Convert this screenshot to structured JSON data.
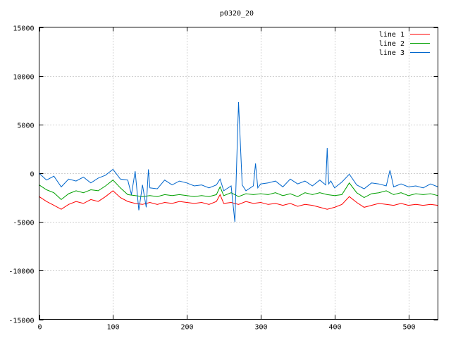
{
  "chart_data": {
    "type": "line",
    "title": "p0320_20",
    "xlabel": "",
    "ylabel": "",
    "xlim": [
      0,
      540
    ],
    "ylim": [
      -15000,
      15000
    ],
    "xticks": [
      0,
      100,
      200,
      300,
      400,
      500
    ],
    "yticks": [
      -15000,
      -10000,
      -5000,
      0,
      5000,
      10000,
      15000
    ],
    "xtick_labels": [
      "0",
      "100",
      "200",
      "300",
      "400",
      "500"
    ],
    "ytick_labels": [
      "-15000",
      "-10000",
      "-5000",
      "0",
      "5000",
      "10000",
      "15000"
    ],
    "grid": true,
    "legend_position": "top-right",
    "series": [
      {
        "name": "line 1",
        "color": "#ff0000",
        "x": [
          0,
          10,
          20,
          30,
          40,
          50,
          60,
          70,
          80,
          90,
          100,
          110,
          120,
          130,
          140,
          150,
          160,
          170,
          180,
          190,
          200,
          210,
          220,
          230,
          240,
          245,
          250,
          260,
          270,
          280,
          290,
          300,
          310,
          320,
          330,
          340,
          350,
          360,
          370,
          380,
          390,
          400,
          410,
          420,
          430,
          440,
          450,
          460,
          470,
          480,
          490,
          500,
          510,
          520,
          530,
          540
        ],
        "y": [
          -2400,
          -2900,
          -3300,
          -3700,
          -3200,
          -2900,
          -3100,
          -2700,
          -2900,
          -2400,
          -1800,
          -2500,
          -2900,
          -3100,
          -3200,
          -3000,
          -3200,
          -3000,
          -3100,
          -2900,
          -3000,
          -3100,
          -3000,
          -3200,
          -2900,
          -2200,
          -3100,
          -3000,
          -3200,
          -2900,
          -3100,
          -3000,
          -3200,
          -3100,
          -3300,
          -3100,
          -3400,
          -3200,
          -3300,
          -3500,
          -3700,
          -3500,
          -3200,
          -2400,
          -3000,
          -3500,
          -3300,
          -3100,
          -3200,
          -3300,
          -3100,
          -3300,
          -3200,
          -3300,
          -3200,
          -3300
        ]
      },
      {
        "name": "line 2",
        "color": "#00a000",
        "x": [
          0,
          10,
          20,
          30,
          40,
          50,
          60,
          70,
          80,
          90,
          100,
          110,
          120,
          130,
          140,
          150,
          160,
          170,
          180,
          190,
          200,
          210,
          220,
          230,
          240,
          245,
          250,
          260,
          270,
          280,
          290,
          300,
          310,
          320,
          330,
          340,
          350,
          360,
          370,
          380,
          390,
          400,
          410,
          420,
          430,
          440,
          450,
          460,
          470,
          480,
          490,
          500,
          510,
          520,
          530,
          540
        ],
        "y": [
          -1200,
          -1700,
          -2000,
          -2700,
          -2100,
          -1800,
          -2000,
          -1700,
          -1800,
          -1300,
          -700,
          -1500,
          -2200,
          -2300,
          -2400,
          -2300,
          -2400,
          -2200,
          -2300,
          -2200,
          -2300,
          -2400,
          -2300,
          -2400,
          -2200,
          -1400,
          -2300,
          -2000,
          -2400,
          -2100,
          -2200,
          -2100,
          -2200,
          -2000,
          -2300,
          -2100,
          -2400,
          -2000,
          -2200,
          -2000,
          -2200,
          -2300,
          -2200,
          -1000,
          -2000,
          -2500,
          -2100,
          -2000,
          -1800,
          -2200,
          -2000,
          -2300,
          -2100,
          -2200,
          -2100,
          -2300
        ]
      },
      {
        "name": "line 3",
        "color": "#0066cc",
        "x": [
          0,
          10,
          20,
          30,
          40,
          50,
          60,
          70,
          80,
          90,
          100,
          110,
          120,
          125,
          130,
          135,
          140,
          145,
          148,
          150,
          160,
          170,
          180,
          190,
          200,
          210,
          220,
          230,
          240,
          245,
          250,
          260,
          265,
          270,
          275,
          280,
          290,
          293,
          296,
          300,
          310,
          320,
          330,
          340,
          350,
          360,
          370,
          380,
          388,
          390,
          392,
          395,
          400,
          410,
          420,
          430,
          440,
          450,
          460,
          470,
          475,
          480,
          490,
          500,
          510,
          520,
          530,
          540
        ],
        "y": [
          0,
          -700,
          -300,
          -1400,
          -600,
          -800,
          -400,
          -1000,
          -500,
          -200,
          400,
          -600,
          -700,
          -2200,
          200,
          -3800,
          -1200,
          -3500,
          400,
          -1500,
          -1600,
          -700,
          -1200,
          -800,
          -1000,
          -1300,
          -1200,
          -1500,
          -1200,
          -600,
          -1800,
          -1300,
          -5000,
          7300,
          -1200,
          -1800,
          -1300,
          1000,
          -1500,
          -1100,
          -1000,
          -800,
          -1400,
          -600,
          -1100,
          -800,
          -1300,
          -700,
          -1200,
          2600,
          -1100,
          -800,
          -1500,
          -900,
          -100,
          -1200,
          -1600,
          -1000,
          -1100,
          -1300,
          300,
          -1400,
          -1100,
          -1400,
          -1300,
          -1500,
          -1100,
          -1400
        ]
      }
    ]
  }
}
